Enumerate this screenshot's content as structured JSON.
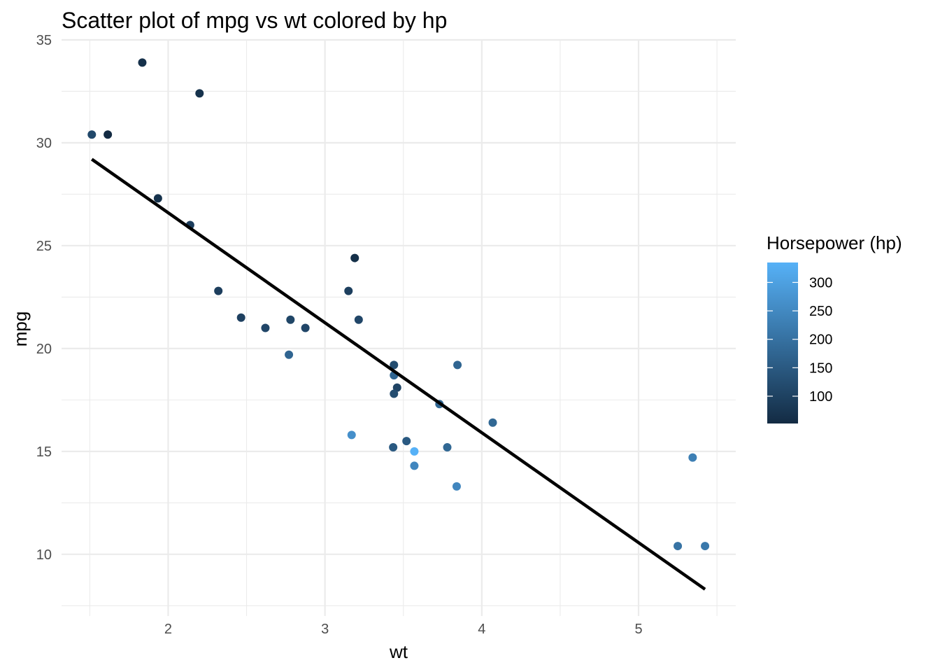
{
  "chart_data": {
    "type": "scatter",
    "title": "Scatter plot of mpg vs wt colored by hp",
    "xlabel": "wt",
    "ylabel": "mpg",
    "xlim": [
      1.32,
      5.62
    ],
    "ylim": [
      7.0,
      35.0
    ],
    "x_ticks": [
      2,
      3,
      4,
      5
    ],
    "x_tick_labels": [
      "2",
      "3",
      "4",
      "5"
    ],
    "y_ticks": [
      10,
      15,
      20,
      25,
      30,
      35
    ],
    "y_tick_labels": [
      "10",
      "15",
      "20",
      "25",
      "30",
      "35"
    ],
    "grid": true,
    "points": [
      {
        "wt": 2.62,
        "mpg": 21.0,
        "hp": 110
      },
      {
        "wt": 2.875,
        "mpg": 21.0,
        "hp": 110
      },
      {
        "wt": 2.32,
        "mpg": 22.8,
        "hp": 93
      },
      {
        "wt": 3.215,
        "mpg": 21.4,
        "hp": 110
      },
      {
        "wt": 3.44,
        "mpg": 18.7,
        "hp": 175
      },
      {
        "wt": 3.46,
        "mpg": 18.1,
        "hp": 105
      },
      {
        "wt": 3.57,
        "mpg": 14.3,
        "hp": 245
      },
      {
        "wt": 3.19,
        "mpg": 24.4,
        "hp": 62
      },
      {
        "wt": 3.15,
        "mpg": 22.8,
        "hp": 95
      },
      {
        "wt": 3.44,
        "mpg": 19.2,
        "hp": 123
      },
      {
        "wt": 3.44,
        "mpg": 17.8,
        "hp": 123
      },
      {
        "wt": 4.07,
        "mpg": 16.4,
        "hp": 180
      },
      {
        "wt": 3.73,
        "mpg": 17.3,
        "hp": 180
      },
      {
        "wt": 3.78,
        "mpg": 15.2,
        "hp": 180
      },
      {
        "wt": 5.25,
        "mpg": 10.4,
        "hp": 205
      },
      {
        "wt": 5.424,
        "mpg": 10.4,
        "hp": 215
      },
      {
        "wt": 5.345,
        "mpg": 14.7,
        "hp": 230
      },
      {
        "wt": 2.2,
        "mpg": 32.4,
        "hp": 66
      },
      {
        "wt": 1.615,
        "mpg": 30.4,
        "hp": 52
      },
      {
        "wt": 1.835,
        "mpg": 33.9,
        "hp": 65
      },
      {
        "wt": 2.465,
        "mpg": 21.5,
        "hp": 97
      },
      {
        "wt": 3.52,
        "mpg": 15.5,
        "hp": 150
      },
      {
        "wt": 3.435,
        "mpg": 15.2,
        "hp": 150
      },
      {
        "wt": 3.84,
        "mpg": 13.3,
        "hp": 245
      },
      {
        "wt": 3.845,
        "mpg": 19.2,
        "hp": 175
      },
      {
        "wt": 1.935,
        "mpg": 27.3,
        "hp": 66
      },
      {
        "wt": 2.14,
        "mpg": 26.0,
        "hp": 91
      },
      {
        "wt": 1.513,
        "mpg": 30.4,
        "hp": 113
      },
      {
        "wt": 3.17,
        "mpg": 15.8,
        "hp": 264
      },
      {
        "wt": 2.77,
        "mpg": 19.7,
        "hp": 175
      },
      {
        "wt": 3.57,
        "mpg": 15.0,
        "hp": 335
      },
      {
        "wt": 2.78,
        "mpg": 21.4,
        "hp": 109
      }
    ],
    "fit_line": {
      "x": [
        1.513,
        5.424
      ],
      "y": [
        29.2,
        8.3
      ],
      "color": "#000000"
    },
    "color_scale": {
      "title": "Horsepower (hp)",
      "min": 52,
      "max": 335,
      "low_color": "#132B43",
      "high_color": "#56B1F7",
      "breaks": [
        100,
        150,
        200,
        250,
        300
      ],
      "break_labels": [
        "100",
        "150",
        "200",
        "250",
        "300"
      ]
    },
    "legend_position": "right"
  }
}
